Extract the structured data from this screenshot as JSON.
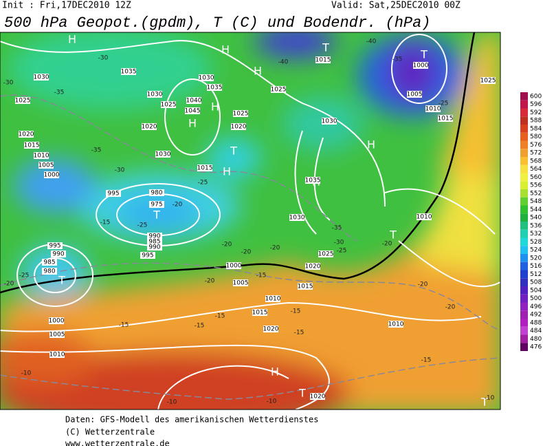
{
  "header": {
    "init": "Init : Fri,17DEC2010 12Z",
    "valid": "Valid: Sat,25DEC2010 00Z",
    "title": "500 hPa Geopot.(gpdm), T (C) und Bodendr. (hPa)"
  },
  "legend": {
    "values": [
      600,
      596,
      592,
      588,
      584,
      580,
      576,
      572,
      568,
      564,
      560,
      556,
      552,
      548,
      544,
      540,
      536,
      532,
      528,
      524,
      520,
      516,
      512,
      508,
      504,
      500,
      496,
      492,
      488,
      484,
      480,
      476
    ],
    "colors": [
      "#a0104c",
      "#c0184a",
      "#d82a3a",
      "#c03020",
      "#d84020",
      "#e86020",
      "#f08028",
      "#f0a030",
      "#f8c030",
      "#f8e040",
      "#f0f040",
      "#d8f030",
      "#a8e030",
      "#60d030",
      "#30c030",
      "#20b040",
      "#20c080",
      "#20d0b0",
      "#20d8d8",
      "#20c0f0",
      "#2090f0",
      "#2060e0",
      "#2040d0",
      "#3030c0",
      "#5020c0",
      "#7020c0",
      "#9020c0",
      "#a020b0",
      "#b020c0",
      "#c040d0",
      "#a020a0",
      "#600060"
    ]
  },
  "map": {
    "centers": [
      "H",
      "H",
      "H",
      "H",
      "H",
      "H",
      "H",
      "H",
      "H",
      "T",
      "T",
      "T",
      "T",
      "T",
      "T",
      "T",
      "T"
    ],
    "isobars": [
      "1030",
      "1025",
      "1020",
      "1015",
      "1010",
      "1005",
      "1000",
      "995",
      "995",
      "990",
      "985",
      "980",
      "1000",
      "1005",
      "1010",
      "1035",
      "1030",
      "1025",
      "1020",
      "1030",
      "1015",
      "1040",
      "1045",
      "1030",
      "1035",
      "1025",
      "1020",
      "1015",
      "1025",
      "1030",
      "1000",
      "1005",
      "1010",
      "1015",
      "1025",
      "1035",
      "1030",
      "1025",
      "1020",
      "1015",
      "1010",
      "1005",
      "1000",
      "1015",
      "1020",
      "1010",
      "1010",
      "1020",
      "990",
      "985",
      "990",
      "995",
      "980",
      "975"
    ],
    "temps": [
      "-30",
      "-35",
      "-30",
      "-35",
      "-30",
      "-25",
      "-20",
      "-25",
      "-15",
      "-20",
      "-20",
      "-20",
      "-15",
      "-20",
      "-15",
      "-15",
      "-15",
      "-10",
      "-10",
      "-10",
      "-15",
      "-20",
      "-20",
      "-25",
      "-30",
      "-35",
      "-20",
      "-25",
      "-35",
      "-40",
      "-40",
      "-20",
      "-25",
      "-15",
      "-15",
      "-10"
    ]
  },
  "footer": {
    "source": "Daten: GFS-Modell des amerikanischen Wetterdienstes",
    "copyright": "(C) Wetterzentrale",
    "url": "www.wetterzentrale.de"
  }
}
